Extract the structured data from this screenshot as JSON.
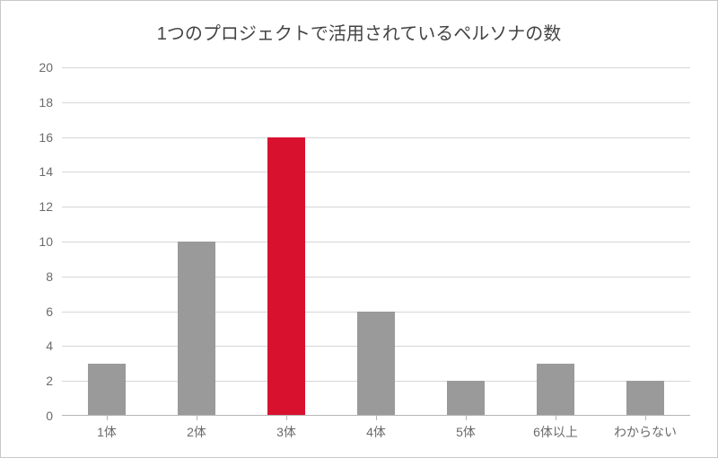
{
  "chart": {
    "type": "bar",
    "title": "1つのプロジェクトで活用されているペルソナの数",
    "title_fontsize": 20,
    "title_color": "#444444",
    "categories": [
      "1体",
      "2体",
      "3体",
      "4体",
      "5体",
      "6体以上",
      "わからない"
    ],
    "values": [
      3,
      10,
      16,
      6,
      2,
      3,
      2
    ],
    "bar_colors": [
      "#9a9a9a",
      "#9a9a9a",
      "#d8112f",
      "#9a9a9a",
      "#9a9a9a",
      "#9a9a9a",
      "#9a9a9a"
    ],
    "ylim": [
      0,
      20
    ],
    "ytick_step": 2,
    "yticks": [
      0,
      2,
      4,
      6,
      8,
      10,
      12,
      14,
      16,
      18,
      20
    ],
    "grid_color": "#d6d6d6",
    "axis_color": "#b5b5b5",
    "background_color": "#ffffff",
    "border_color": "#c8c8c8",
    "label_fontsize": 14,
    "label_color": "#6b6b6b",
    "bar_width": 0.42
  }
}
